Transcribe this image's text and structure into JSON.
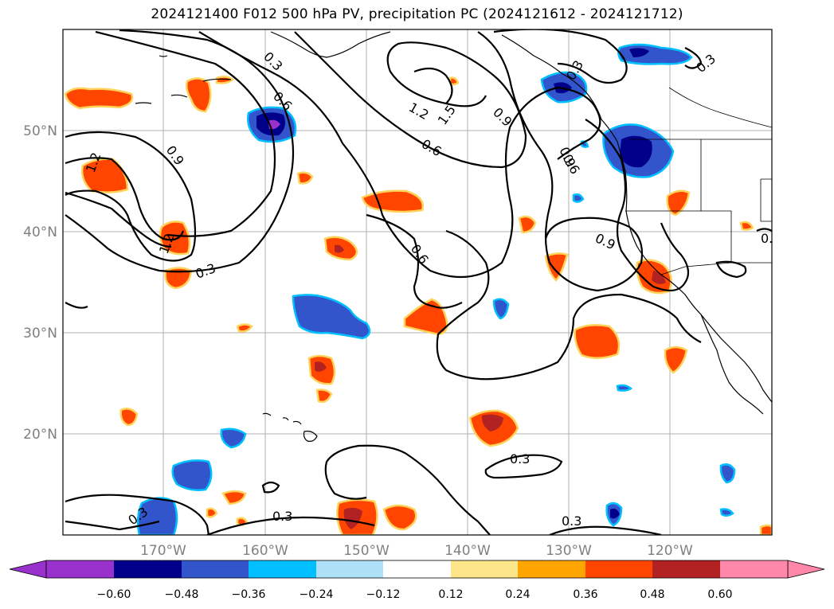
{
  "title": "2024121400 F012 500 hPa PV, precipitation PC (2024121612 - 2024121712)",
  "map": {
    "lon_ticks": [
      "170°W",
      "160°W",
      "150°W",
      "140°W",
      "130°W",
      "120°W"
    ],
    "lat_ticks": [
      "50°N",
      "40°N",
      "30°N",
      "20°N"
    ],
    "grid": true
  },
  "contour_labels": [
    "0.3",
    "0.6",
    "1.2",
    "1.5",
    "0.9",
    "0.3",
    "0.9",
    "0.6",
    "1.2",
    "0.9",
    "0.6",
    "0.3",
    "1.2",
    "0.3",
    "0.6",
    "0.9",
    "0.3",
    "0.3",
    "0.3",
    "0.3",
    "0.3",
    "0"
  ],
  "colorbar": {
    "ticks": [
      "−0.60",
      "−0.48",
      "−0.36",
      "−0.24",
      "−0.12",
      "0.12",
      "0.24",
      "0.36",
      "0.48",
      "0.60"
    ],
    "colors": [
      "#9932cc",
      "#00008b",
      "#3355cc",
      "#00bfff",
      "#aee0f8",
      "#ffffff",
      "#fde68a",
      "#ffa500",
      "#ff4500",
      "#b22222",
      "#ff88aa"
    ]
  }
}
